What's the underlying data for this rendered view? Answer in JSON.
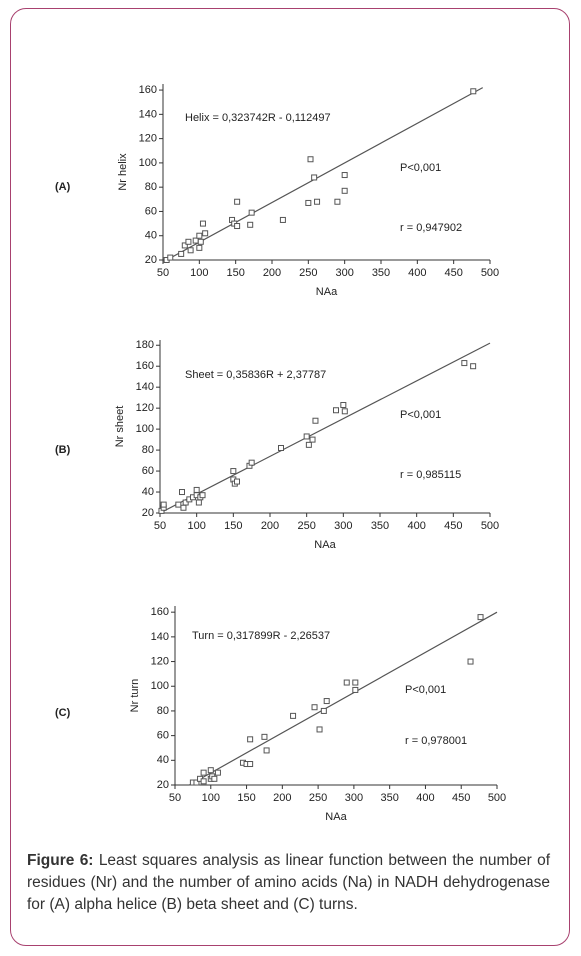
{
  "chart_data": [
    {
      "type": "scatter",
      "panel_label": "(A)",
      "ylabel": "Nr helix",
      "xlabel": "NAa",
      "annotations": [
        "Helix = 0,323742R - 0,112497",
        "P<0,001",
        "r = 0,947902"
      ],
      "x": [
        55,
        60,
        75,
        80,
        85,
        88,
        95,
        100,
        100,
        102,
        105,
        108,
        145,
        148,
        152,
        152,
        170,
        172,
        215,
        250,
        253,
        258,
        262,
        290,
        300,
        300,
        477
      ],
      "values": [
        20,
        22,
        25,
        32,
        35,
        28,
        36,
        30,
        40,
        35,
        50,
        42,
        53,
        50,
        48,
        68,
        49,
        59,
        53,
        67,
        103,
        88,
        68,
        68,
        77,
        90,
        159
      ],
      "trend_line": {
        "x": [
          55,
          490
        ],
        "y": [
          20,
          162
        ]
      },
      "color": "#555555",
      "xlim": [
        50,
        500
      ],
      "ylim": [
        20,
        165
      ],
      "xticks": [
        50,
        100,
        150,
        200,
        250,
        300,
        350,
        400,
        450,
        500
      ],
      "yticks": [
        20,
        40,
        60,
        80,
        100,
        120,
        140,
        160
      ]
    },
    {
      "type": "scatter",
      "panel_label": "(B)",
      "ylabel": "Nr sheet",
      "xlabel": "NAa",
      "annotations": [
        "Sheet = 0,35836R + 2,37787",
        "P<0,001",
        "r = 0,985115"
      ],
      "x": [
        52,
        55,
        55,
        75,
        80,
        82,
        85,
        90,
        95,
        100,
        100,
        103,
        105,
        108,
        150,
        150,
        152,
        155,
        172,
        175,
        215,
        250,
        253,
        258,
        262,
        290,
        300,
        302,
        465,
        477
      ],
      "values": [
        22,
        25,
        28,
        28,
        40,
        25,
        30,
        33,
        35,
        42,
        37,
        30,
        35,
        37,
        52,
        60,
        48,
        50,
        65,
        68,
        82,
        93,
        85,
        90,
        108,
        118,
        123,
        117,
        163,
        160
      ],
      "trend_line": {
        "x": [
          50,
          500
        ],
        "y": [
          20,
          182
        ]
      },
      "color": "#555555",
      "xlim": [
        50,
        500
      ],
      "ylim": [
        20,
        185
      ],
      "xticks": [
        50,
        100,
        150,
        200,
        250,
        300,
        350,
        400,
        450,
        500
      ],
      "yticks": [
        20,
        40,
        60,
        80,
        100,
        120,
        140,
        160,
        180
      ]
    },
    {
      "type": "scatter",
      "panel_label": "(C)",
      "ylabel": "Nr turn",
      "xlabel": "NAa",
      "annotations": [
        "Turn = 0,317899R - 2,26537",
        "P<0,001",
        "r = 0,978001"
      ],
      "x": [
        75,
        80,
        85,
        90,
        90,
        100,
        100,
        102,
        105,
        110,
        145,
        150,
        155,
        155,
        175,
        178,
        215,
        245,
        252,
        258,
        262,
        290,
        302,
        302,
        463,
        477
      ],
      "values": [
        22,
        22,
        25,
        23,
        30,
        32,
        25,
        27,
        25,
        30,
        38,
        37,
        37,
        57,
        59,
        48,
        76,
        83,
        65,
        80,
        88,
        103,
        103,
        97,
        120,
        156
      ],
      "trend_line": {
        "x": [
          70,
          500
        ],
        "y": [
          20,
          160
        ]
      },
      "color": "#555555",
      "xlim": [
        50,
        500
      ],
      "ylim": [
        20,
        165
      ],
      "xticks": [
        50,
        100,
        150,
        200,
        250,
        300,
        350,
        400,
        450,
        500
      ],
      "yticks": [
        20,
        40,
        60,
        80,
        100,
        120,
        140,
        160
      ]
    }
  ],
  "caption": {
    "label": "Figure 6:",
    "text": "Least squares analysis as linear function between the number of residues (Nr) and the number of amino acids (Na) in NADH dehydrogenase for (A) alpha helice (B) beta sheet and (C) turns."
  }
}
